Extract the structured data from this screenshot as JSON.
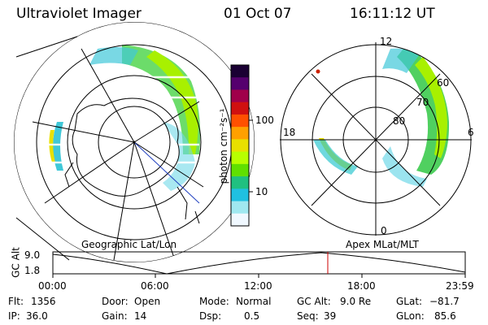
{
  "header": {
    "instrument": "Ultraviolet Imager",
    "date": "01 Oct 07",
    "time": "16:11:12 UT"
  },
  "colorbar": {
    "unit_label": "photon cm⁻²s⁻¹",
    "ticks": [
      "100",
      "10"
    ],
    "colors": [
      "#1a0033",
      "#55006e",
      "#a0004a",
      "#d01010",
      "#ff5000",
      "#ffa000",
      "#e8e000",
      "#b8ff00",
      "#60e000",
      "#20c080",
      "#20c0e0",
      "#a0e8f0",
      "#f0f8ff"
    ]
  },
  "left_map": {
    "label": "Geographic Lat/Lon"
  },
  "right_map": {
    "label": "Apex MLat/MLT",
    "mlt_labels": {
      "top": "12",
      "left": "18",
      "right": "6",
      "bottom": "0"
    },
    "lat_labels": [
      "60",
      "70",
      "80"
    ]
  },
  "altitude_plot": {
    "ylabel": "GC Alt",
    "yticks": [
      "9.0",
      "1.8"
    ],
    "xticks": [
      "00:00",
      "06:00",
      "12:00",
      "18:00",
      "23:59"
    ],
    "marker_time": "16:11",
    "marker_color": "#cc0000"
  },
  "info": {
    "flt_label": "Flt:",
    "flt_value": "1356",
    "ip_label": "IP:",
    "ip_value": "36.0",
    "door_label": "Door:",
    "door_value": "Open",
    "gain_label": "Gain:",
    "gain_value": "14",
    "mode_label": "Mode:",
    "mode_value": "Normal",
    "dsp_label": "Dsp:",
    "dsp_value": "0.5",
    "gcalt_label": "GC Alt:",
    "gcalt_value": "9.0 Re",
    "seq_label": "Seq:",
    "seq_value": "39",
    "glat_label": "GLat:",
    "glat_value": "−81.7",
    "glon_label": "GLon:",
    "glon_value": "85.6"
  }
}
